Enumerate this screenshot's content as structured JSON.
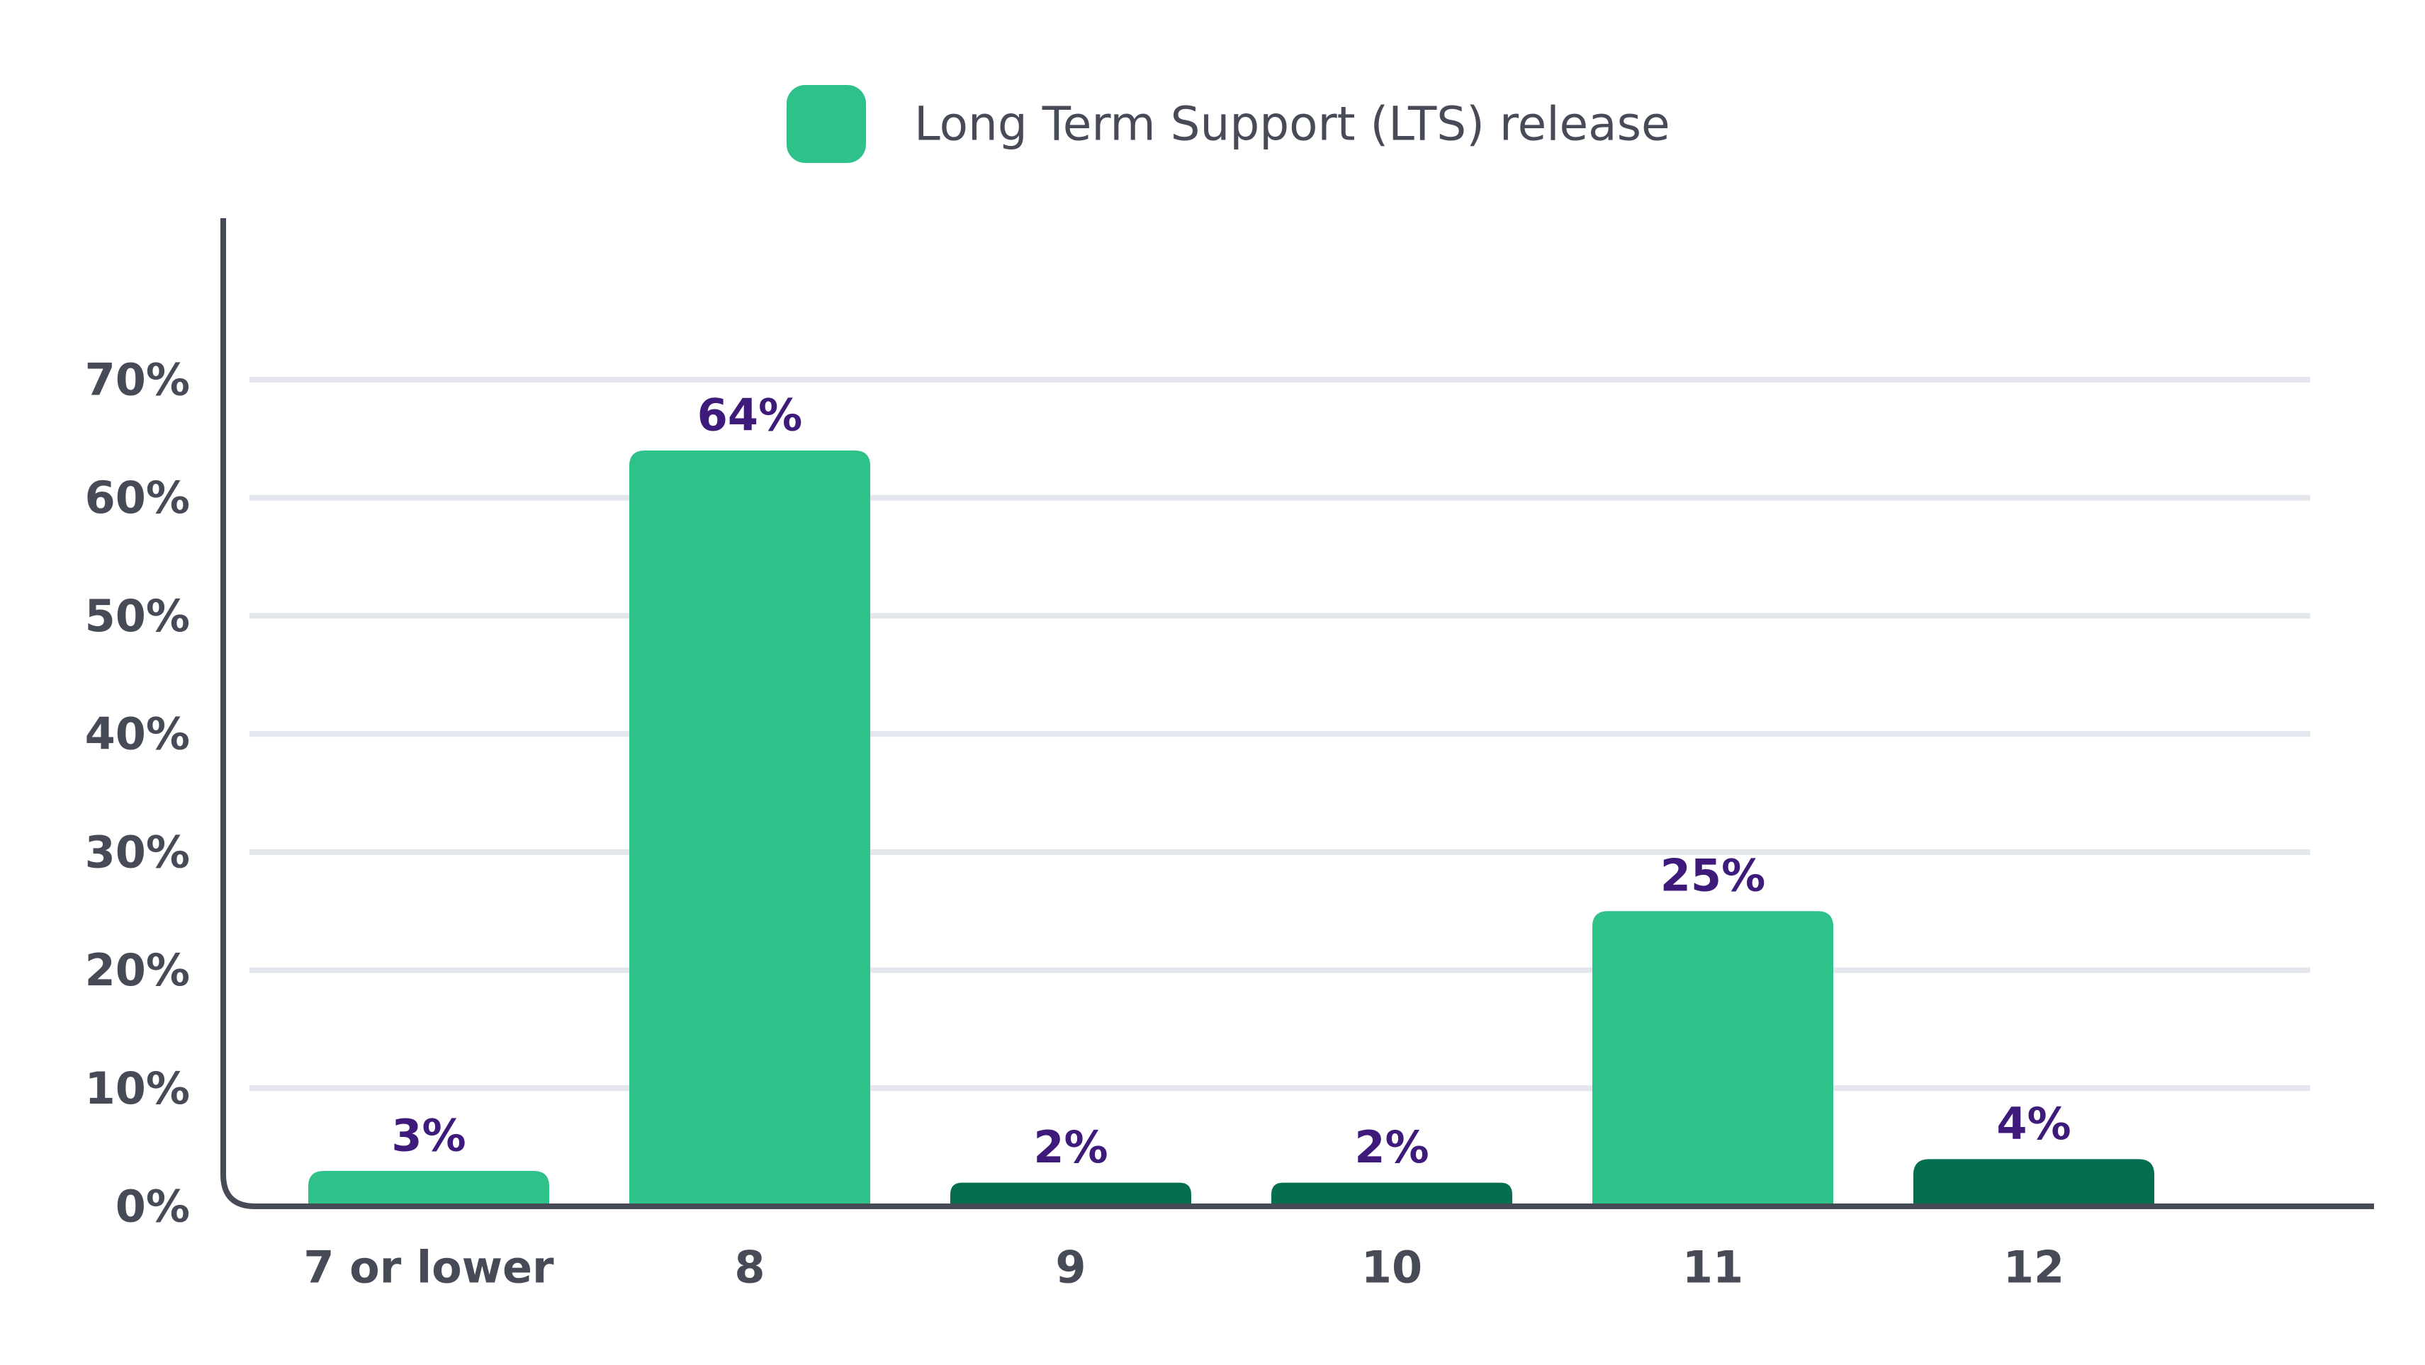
{
  "chart_data": {
    "type": "bar",
    "title": "",
    "xlabel": "",
    "ylabel": "",
    "categories": [
      "7 or lower",
      "8",
      "9",
      "10",
      "11",
      "12"
    ],
    "values": [
      3,
      64,
      2,
      2,
      25,
      4
    ],
    "value_labels": [
      "3%",
      "64%",
      "2%",
      "2%",
      "25%",
      "4%"
    ],
    "is_lts": [
      true,
      true,
      false,
      false,
      true,
      false
    ],
    "colors": {
      "lts": "#2ec18a",
      "non_lts": "#056d50",
      "data_label": "#3e1a7a",
      "axis": "#474b57",
      "grid": "#e3e6ec"
    },
    "legend": {
      "position": "top-center",
      "entries": [
        {
          "label": "Long Term Support (LTS) release",
          "color": "#2ec18a"
        }
      ]
    },
    "ylim": [
      0,
      70
    ],
    "yticks": [
      0,
      10,
      20,
      30,
      40,
      50,
      60,
      70
    ],
    "ytick_labels": [
      "0%",
      "10%",
      "20%",
      "30%",
      "40%",
      "50%",
      "60%",
      "70%"
    ],
    "grid": true
  }
}
